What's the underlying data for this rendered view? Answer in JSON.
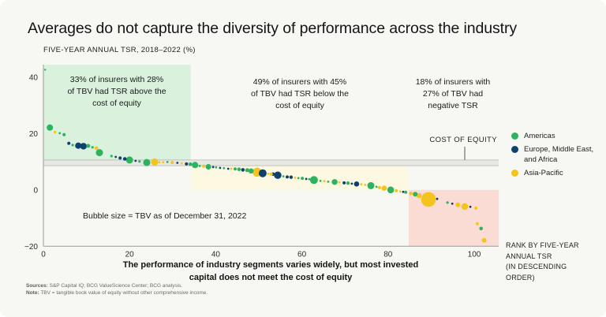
{
  "chart_data": {
    "type": "scatter",
    "title": "Averages do not capture the diversity of performance across the industry",
    "y_axis_title": "FIVE-YEAR ANNUAL TSR, 2018–2022 (%)",
    "x_ticks": [
      0,
      20,
      40,
      60,
      80,
      100
    ],
    "y_ticks": [
      40,
      20,
      0,
      -20
    ],
    "xlim": [
      0,
      105.7
    ],
    "ylim": [
      -20,
      44.4
    ],
    "grid": false,
    "legend_position": "right",
    "cost_of_equity_band": {
      "label": "COST OF EQUITY",
      "tsr_top": 10.6,
      "tsr_bottom": 8.6,
      "fill": "#e7e7e3",
      "stroke": "#b3b3af"
    },
    "regions": [
      {
        "name": "tsr-above-cost-of-equity",
        "x0": 0,
        "x1": 34.2,
        "y0": 10.6,
        "y1": 44.4,
        "fill": "#daf1de"
      },
      {
        "name": "tsr-below-cost-of-equity",
        "x0": 34.2,
        "x1": 84.8,
        "y0": 0,
        "y1": 8.6,
        "fill": "#fcf8e2"
      },
      {
        "name": "negative-tsr",
        "x0": 84.8,
        "x1": 105.7,
        "y0": -20,
        "y1": 0,
        "fill": "#fadcd4"
      }
    ],
    "series": [
      {
        "name": "Americas",
        "color": "#2db25f",
        "points": [
          [
            0.4,
            42.6,
            1.2
          ],
          [
            1.5,
            22.1,
            4.0
          ],
          [
            3.8,
            20.1,
            1.4
          ],
          [
            4.8,
            19.6,
            2.0
          ],
          [
            6.8,
            15.9,
            1.6
          ],
          [
            10.4,
            15.6,
            2.5
          ],
          [
            11.4,
            15.1,
            1.6
          ],
          [
            13.0,
            13.2,
            4.5
          ],
          [
            15.8,
            12.0,
            1.6
          ],
          [
            20.0,
            10.6,
            4.5
          ],
          [
            22.3,
            10.1,
            1.6
          ],
          [
            24.0,
            9.7,
            4.5
          ],
          [
            28.8,
            9.9,
            1.4
          ],
          [
            34.1,
            9.1,
            2.3
          ],
          [
            35.2,
            8.8,
            4.0
          ],
          [
            36.3,
            8.5,
            1.4
          ],
          [
            38.3,
            8.2,
            3.5
          ],
          [
            40.1,
            8.0,
            1.4
          ],
          [
            41.9,
            7.7,
            1.4
          ],
          [
            44.5,
            7.4,
            2.0
          ],
          [
            45.4,
            7.3,
            2.3
          ],
          [
            47.3,
            7.0,
            2.5
          ],
          [
            48.2,
            6.7,
            3.3
          ],
          [
            55.7,
            4.8,
            1.4
          ],
          [
            59.2,
            4.2,
            1.4
          ],
          [
            60.1,
            4.1,
            2.0
          ],
          [
            61.7,
            3.8,
            1.4
          ],
          [
            62.8,
            3.5,
            5.0
          ],
          [
            64.3,
            3.2,
            1.4
          ],
          [
            66.1,
            2.9,
            1.4
          ],
          [
            67.6,
            2.8,
            3.7
          ],
          [
            70.7,
            2.4,
            2.2
          ],
          [
            76.0,
            1.5,
            4.5
          ],
          [
            77.3,
            1.1,
            1.4
          ],
          [
            80.6,
            0.0,
            4.3
          ],
          [
            84.1,
            -0.8,
            2.0
          ],
          [
            86.3,
            -1.5,
            3.0
          ],
          [
            93.8,
            -4.5,
            1.6
          ],
          [
            101.6,
            -13.7,
            2.3
          ]
        ]
      },
      {
        "name": "Europe, Middle East, and Africa",
        "color": "#0f406e",
        "points": [
          [
            5.9,
            16.5,
            2.0
          ],
          [
            8.1,
            15.7,
            4.0
          ],
          [
            9.3,
            15.5,
            4.2
          ],
          [
            16.8,
            11.7,
            1.4
          ],
          [
            17.8,
            11.3,
            2.0
          ],
          [
            18.9,
            11.0,
            2.3
          ],
          [
            21.4,
            10.3,
            1.4
          ],
          [
            31.1,
            9.6,
            1.4
          ],
          [
            33.2,
            9.2,
            2.0
          ],
          [
            39.4,
            8.1,
            1.4
          ],
          [
            41.0,
            7.8,
            1.4
          ],
          [
            42.9,
            7.5,
            1.4
          ],
          [
            46.3,
            7.1,
            2.3
          ],
          [
            50.9,
            5.9,
            5.0
          ],
          [
            53.3,
            5.6,
            2.3
          ],
          [
            54.4,
            5.2,
            4.7
          ],
          [
            56.6,
            4.6,
            2.0
          ],
          [
            57.5,
            4.5,
            2.2
          ],
          [
            61.0,
            3.9,
            1.4
          ],
          [
            69.8,
            2.5,
            2.0
          ],
          [
            71.6,
            2.2,
            1.4
          ],
          [
            72.7,
            2.1,
            3.3
          ],
          [
            83.5,
            -0.7,
            1.4
          ],
          [
            91.4,
            -3.2,
            1.4
          ],
          [
            94.9,
            -4.9,
            1.4
          ],
          [
            99.1,
            -6.0,
            1.4
          ]
        ]
      },
      {
        "name": "Asia-Pacific",
        "color": "#f4c41c",
        "points": [
          [
            2.7,
            20.5,
            1.6
          ],
          [
            12.3,
            14.8,
            2.3
          ],
          [
            25.8,
            9.9,
            4.5
          ],
          [
            26.9,
            9.8,
            1.4
          ],
          [
            27.8,
            9.8,
            1.4
          ],
          [
            29.9,
            9.7,
            2.0
          ],
          [
            32.1,
            9.4,
            1.4
          ],
          [
            37.2,
            8.4,
            2.0
          ],
          [
            43.6,
            7.5,
            1.4
          ],
          [
            49.6,
            6.3,
            5.7
          ],
          [
            52.2,
            5.7,
            1.4
          ],
          [
            52.9,
            5.6,
            2.0
          ],
          [
            58.4,
            4.3,
            1.4
          ],
          [
            65.2,
            3.1,
            1.4
          ],
          [
            68.7,
            2.7,
            1.4
          ],
          [
            73.8,
            2.0,
            1.4
          ],
          [
            74.7,
            1.8,
            1.4
          ],
          [
            78.0,
            0.8,
            2.0
          ],
          [
            79.1,
            0.6,
            3.3
          ],
          [
            81.9,
            -0.3,
            2.0
          ],
          [
            82.8,
            -0.6,
            1.4
          ],
          [
            85.3,
            -1.3,
            2.3
          ],
          [
            87.2,
            -2.0,
            3.3
          ],
          [
            89.4,
            -3.4,
            9.3
          ],
          [
            96.2,
            -5.3,
            3.0
          ],
          [
            97.8,
            -5.9,
            4.3
          ],
          [
            100.4,
            -6.4,
            2.0
          ],
          [
            100.7,
            -12.0,
            2.0
          ],
          [
            102.3,
            -17.9,
            3.0
          ]
        ]
      }
    ]
  },
  "annotations": [
    {
      "lines": [
        "33% of insurers with 28%",
        "of TBV had TSR above the",
        "cost of equity"
      ]
    },
    {
      "lines": [
        "49% of insurers with 45%",
        "of TBV had TSR below the",
        "cost of equity"
      ]
    },
    {
      "lines": [
        "18% of insurers with",
        "27% of TBV had",
        "negative TSR"
      ]
    }
  ],
  "legend": {
    "items": [
      {
        "label": "Americas",
        "color": "#2db25f"
      },
      {
        "label": "Europe, Middle East, and Africa",
        "color": "#0f406e"
      },
      {
        "label": "Asia-Pacific",
        "color": "#f4c41c"
      }
    ]
  },
  "caption": {
    "lines": [
      "The performance of industry segments varies widely, but most invested",
      "capital does not meet the cost of equity"
    ]
  },
  "rank_label": {
    "lines": [
      "RANK BY FIVE-YEAR",
      "ANNUAL TSR",
      "(IN DESCENDING",
      "ORDER)"
    ]
  },
  "bubble_note": "Bubble size = TBV as of December 31, 2022",
  "footnotes": [
    {
      "label": "Sources:",
      "text": "S&P Capital IQ; BCG ValueScience Center; BCG analysis."
    },
    {
      "label": "Note:",
      "text": "TBV = tangible book value of equity without other comprehensive income."
    }
  ]
}
